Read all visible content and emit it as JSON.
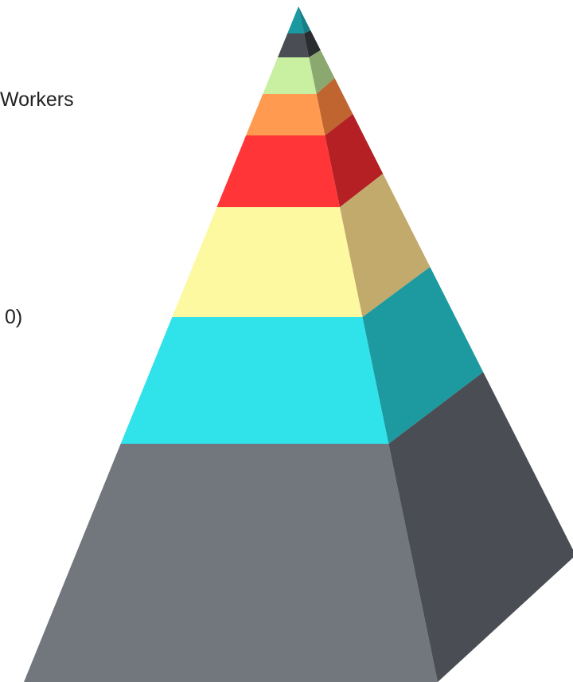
{
  "labels": [
    "Workers",
    "0)"
  ]
}
